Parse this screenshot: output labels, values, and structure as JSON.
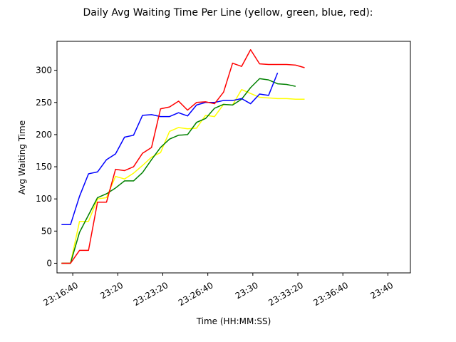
{
  "chart_data": {
    "type": "line",
    "title": "Daily Avg Waiting Time Per Line (yellow, green, blue, red):",
    "xlabel": "Time (HH:MM:SS)",
    "ylabel": "Avg Waiting Time",
    "x_start": "23:15:50",
    "x_step_seconds": 40,
    "xlim": [
      "23:15:30",
      "23:41:40"
    ],
    "ylim": [
      -15,
      345
    ],
    "xticks": [
      {
        "time": "23:16:40",
        "label": "23:16:40"
      },
      {
        "time": "23:20:00",
        "label": "23:20"
      },
      {
        "time": "23:23:20",
        "label": "23:23:20"
      },
      {
        "time": "23:26:40",
        "label": "23:26:40"
      },
      {
        "time": "23:30:00",
        "label": "23:30"
      },
      {
        "time": "23:33:20",
        "label": "23:33:20"
      },
      {
        "time": "23:36:40",
        "label": "23:36:40"
      },
      {
        "time": "23:40:00",
        "label": "23:40"
      }
    ],
    "yticks": [
      0,
      50,
      100,
      150,
      200,
      250,
      300
    ],
    "grid": false,
    "series": [
      {
        "name": "yellow",
        "color": "#ffff00",
        "values": [
          0,
          0,
          65,
          65,
          100,
          102,
          135,
          131,
          140,
          152,
          165,
          172,
          205,
          211,
          209,
          210,
          230,
          228,
          247,
          246,
          270,
          264,
          258,
          257,
          256,
          256,
          255,
          255
        ]
      },
      {
        "name": "green",
        "color": "#008000",
        "values": [
          0,
          0,
          48,
          75,
          102,
          108,
          117,
          128,
          128,
          141,
          161,
          180,
          193,
          199,
          200,
          219,
          225,
          241,
          247,
          246,
          255,
          273,
          287,
          285,
          279,
          278,
          275
        ]
      },
      {
        "name": "blue",
        "color": "#0000ff",
        "values": [
          60,
          60,
          104,
          139,
          142,
          161,
          170,
          196,
          199,
          230,
          231,
          228,
          228,
          234,
          229,
          246,
          250,
          250,
          253,
          253,
          256,
          248,
          263,
          261,
          296
        ]
      },
      {
        "name": "red",
        "color": "#ff0000",
        "values": [
          0,
          0,
          20,
          20,
          95,
          95,
          146,
          144,
          150,
          171,
          180,
          240,
          243,
          252,
          238,
          250,
          251,
          248,
          266,
          311,
          306,
          332,
          310,
          309,
          309,
          309,
          308,
          304
        ]
      }
    ]
  }
}
